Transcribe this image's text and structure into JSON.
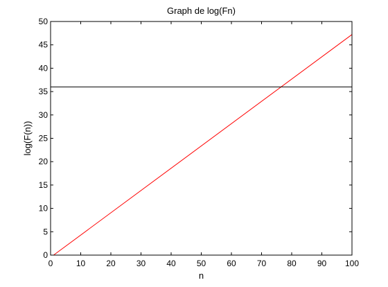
{
  "chart_data": {
    "type": "line",
    "title": "Graph de log(Fn)",
    "xlabel": "n",
    "ylabel": "log(F(n))",
    "xlim": [
      0,
      100
    ],
    "ylim": [
      0,
      50
    ],
    "xticks": [
      0,
      10,
      20,
      30,
      40,
      50,
      60,
      70,
      80,
      90,
      100
    ],
    "yticks": [
      0,
      5,
      10,
      15,
      20,
      25,
      30,
      35,
      40,
      45,
      50
    ],
    "grid": false,
    "series": [
      {
        "color": "#ff0000",
        "x": [
          1,
          100
        ],
        "y": [
          0,
          47.21
        ]
      },
      {
        "color": "#000000",
        "x": [
          0,
          100
        ],
        "y": [
          36,
          36
        ]
      }
    ]
  }
}
